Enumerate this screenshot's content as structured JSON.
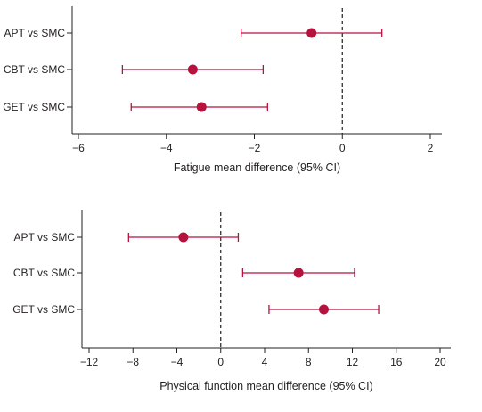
{
  "chart_data": [
    {
      "type": "forest",
      "xlabel": "Fatigue mean difference (95% CI)",
      "xlim": [
        -6,
        2
      ],
      "xticks": [
        -6,
        -4,
        -2,
        0,
        2
      ],
      "reference_line": 0,
      "grid": false,
      "categories": [
        "APT vs SMC",
        "CBT vs SMC",
        "GET vs SMC"
      ],
      "estimates": [
        -0.7,
        -3.4,
        -3.2
      ],
      "ci_low": [
        -2.3,
        -5.0,
        -4.8
      ],
      "ci_high": [
        0.9,
        -1.8,
        -1.7
      ],
      "color": "#b5123e"
    },
    {
      "type": "forest",
      "xlabel": "Physical function mean difference (95% CI)",
      "xlim": [
        -13,
        21
      ],
      "xticks": [
        -12,
        -8,
        -4,
        0,
        4,
        8,
        12,
        16,
        20
      ],
      "reference_line": 0,
      "grid": false,
      "categories": [
        "APT vs SMC",
        "CBT vs SMC",
        "GET vs SMC"
      ],
      "estimates": [
        -3.4,
        7.1,
        9.4
      ],
      "ci_low": [
        -8.4,
        2.0,
        4.4
      ],
      "ci_high": [
        1.6,
        12.2,
        14.4
      ],
      "color": "#b5123e"
    }
  ]
}
